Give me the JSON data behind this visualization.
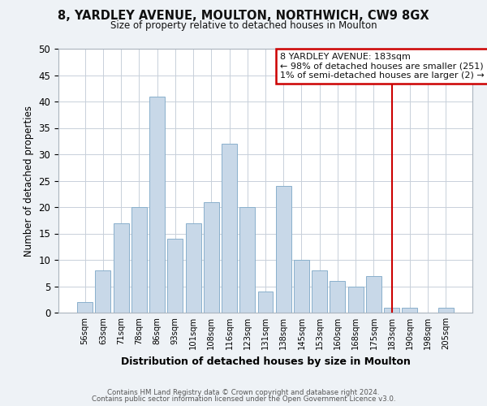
{
  "title": "8, YARDLEY AVENUE, MOULTON, NORTHWICH, CW9 8GX",
  "subtitle": "Size of property relative to detached houses in Moulton",
  "xlabel": "Distribution of detached houses by size in Moulton",
  "ylabel": "Number of detached properties",
  "bin_labels": [
    "56sqm",
    "63sqm",
    "71sqm",
    "78sqm",
    "86sqm",
    "93sqm",
    "101sqm",
    "108sqm",
    "116sqm",
    "123sqm",
    "131sqm",
    "138sqm",
    "145sqm",
    "153sqm",
    "160sqm",
    "168sqm",
    "175sqm",
    "183sqm",
    "190sqm",
    "198sqm",
    "205sqm"
  ],
  "bar_heights": [
    2,
    8,
    17,
    20,
    41,
    14,
    17,
    21,
    32,
    20,
    4,
    24,
    10,
    8,
    6,
    5,
    7,
    1,
    1,
    0,
    1
  ],
  "bar_color": "#c8d8e8",
  "bar_edgecolor": "#8ab0cc",
  "marker_index": 17,
  "marker_line_color": "#cc0000",
  "ylim": [
    0,
    50
  ],
  "yticks": [
    0,
    5,
    10,
    15,
    20,
    25,
    30,
    35,
    40,
    45,
    50
  ],
  "annotation_title": "8 YARDLEY AVENUE: 183sqm",
  "annotation_line1": "← 98% of detached houses are smaller (251)",
  "annotation_line2": "1% of semi-detached houses are larger (2) →",
  "annotation_box_color": "#ffffff",
  "annotation_box_edgecolor": "#cc0000",
  "footer1": "Contains HM Land Registry data © Crown copyright and database right 2024.",
  "footer2": "Contains public sector information licensed under the Open Government Licence v3.0.",
  "bg_color": "#eef2f6",
  "plot_bg_color": "#ffffff",
  "grid_color": "#c8d0da"
}
